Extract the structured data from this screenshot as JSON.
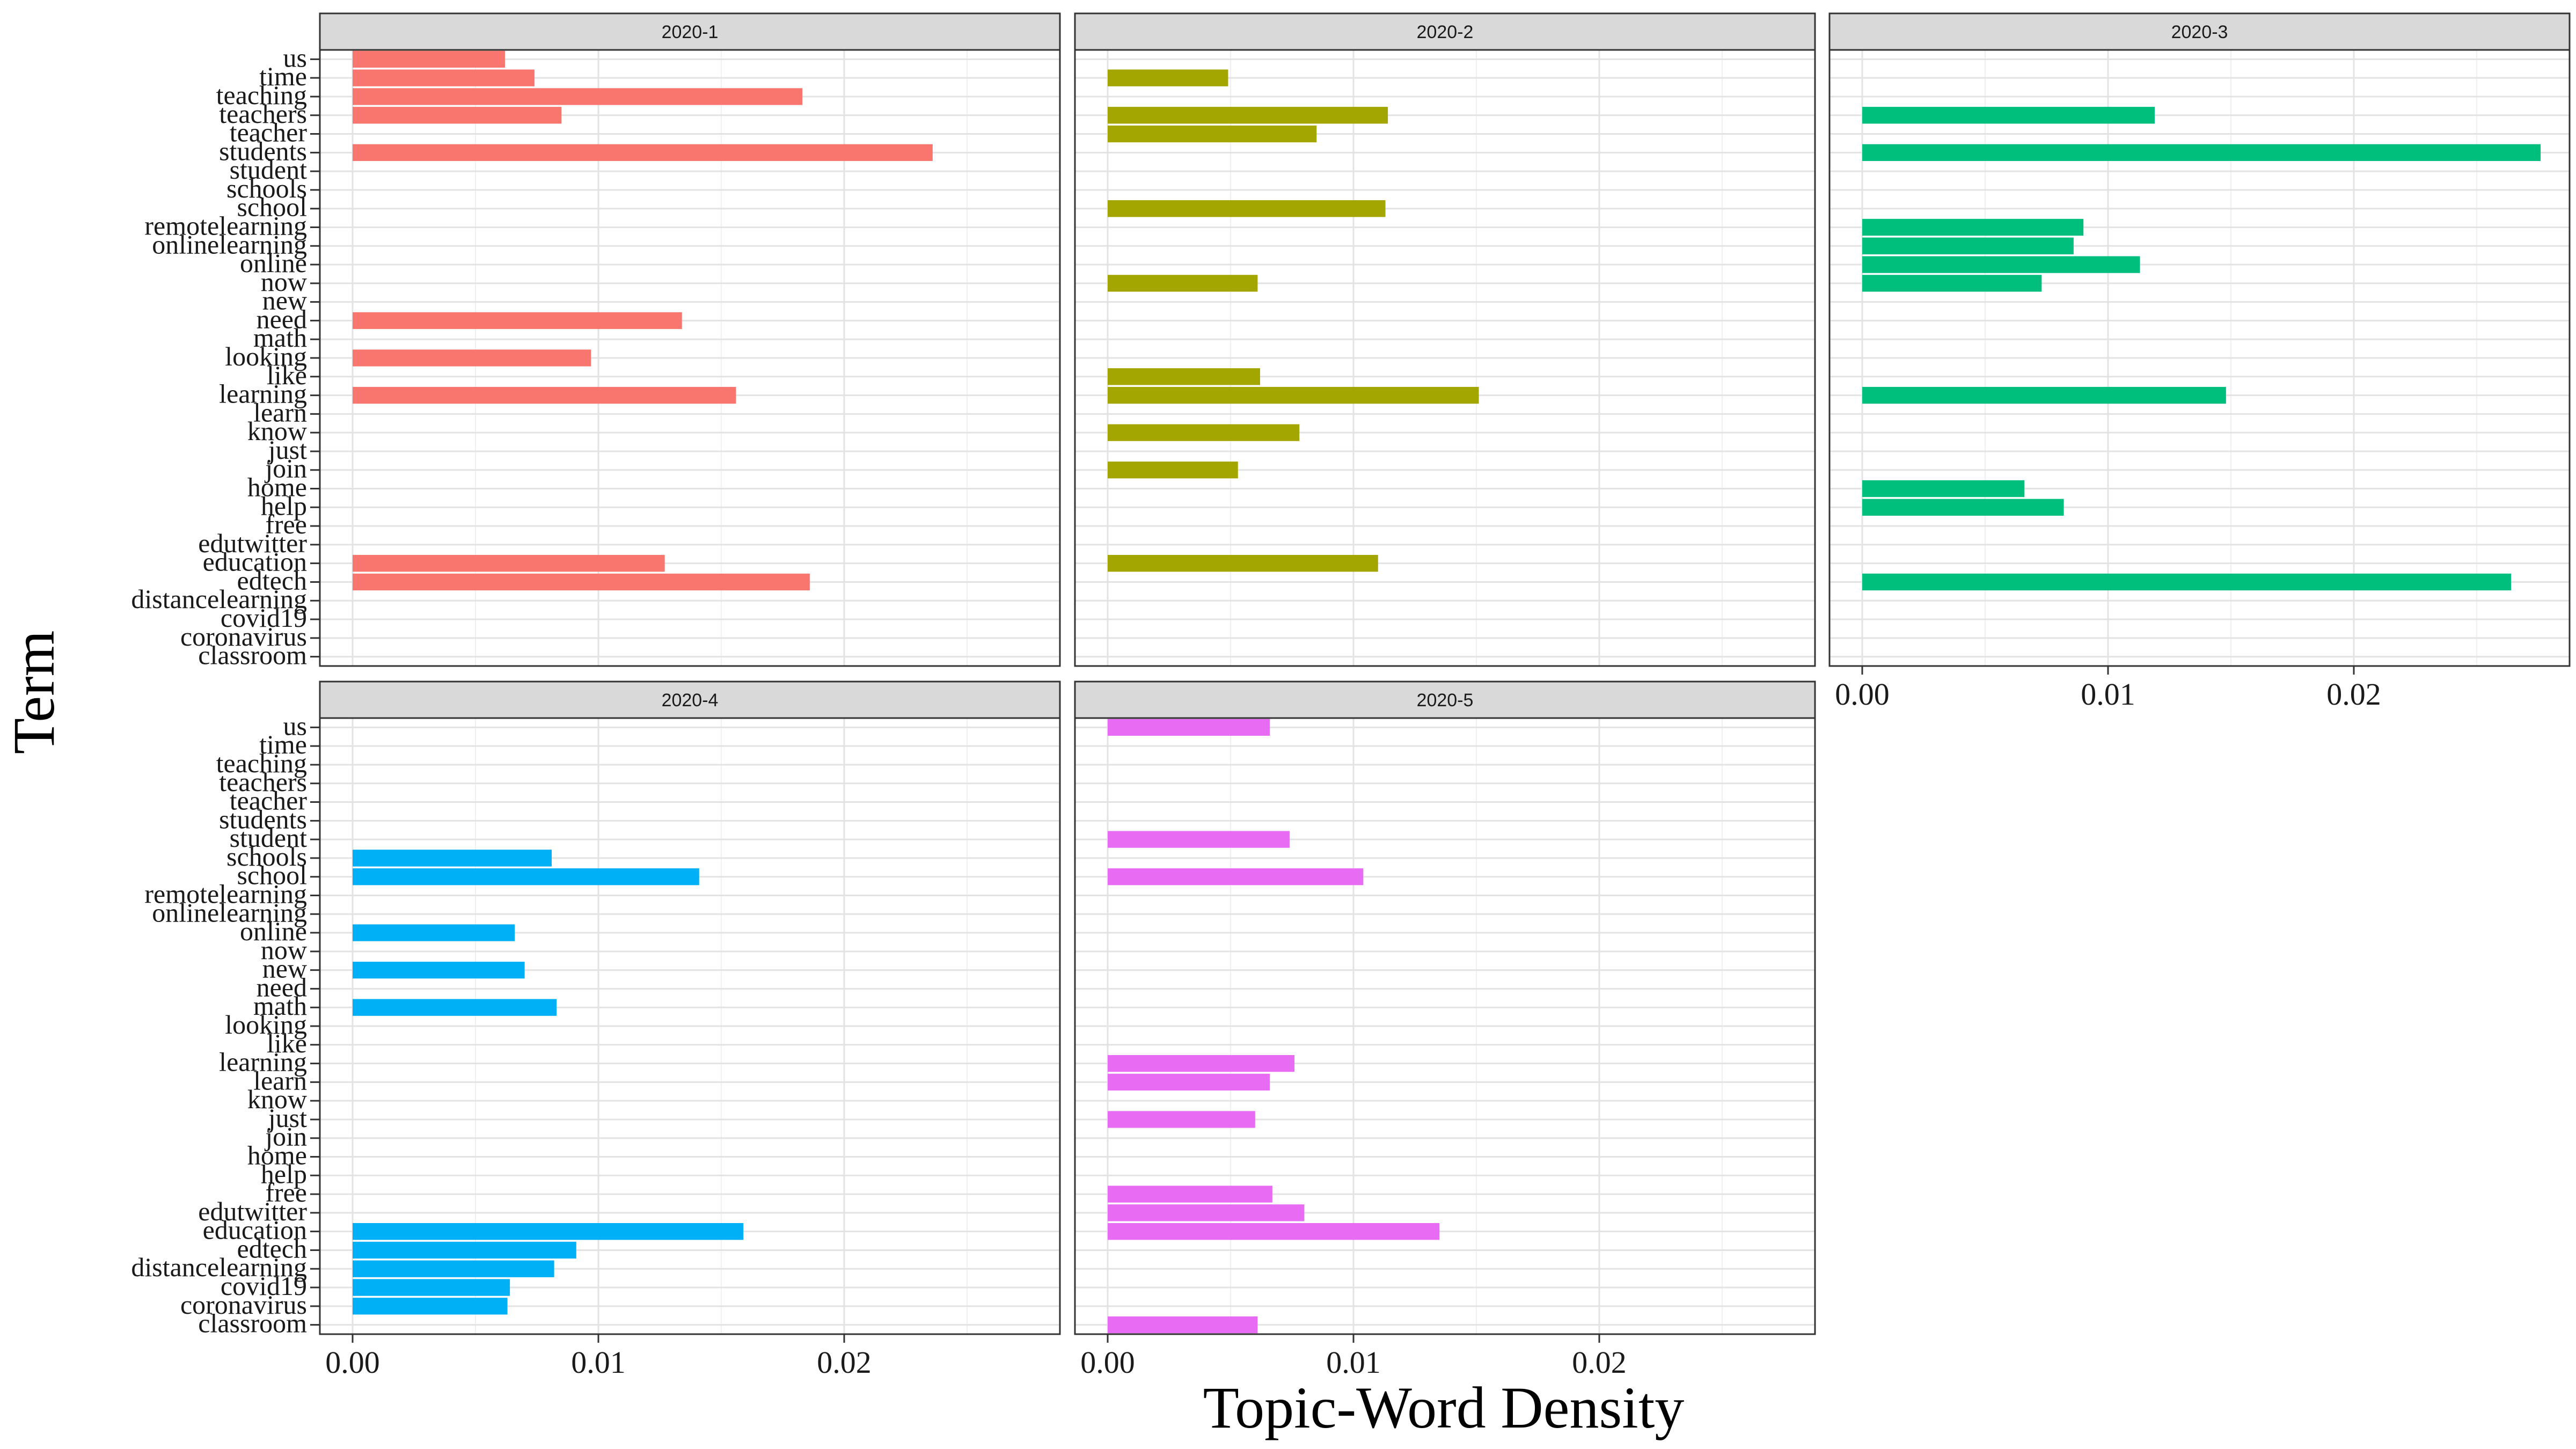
{
  "chart_data": {
    "type": "bar",
    "orientation": "horizontal",
    "facet_layout": {
      "rows": 2,
      "cols": 3
    },
    "xlabel": "Topic-Word Density",
    "ylabel": "Term",
    "xlim": [
      0,
      0.0288
    ],
    "x_ticks": [
      0,
      0.01,
      0.02
    ],
    "x_tick_labels": [
      "0.00",
      "0.01",
      "0.02"
    ],
    "grid": true,
    "legend": "none",
    "categories": [
      "us",
      "time",
      "teaching",
      "teachers",
      "teacher",
      "students",
      "student",
      "schools",
      "school",
      "remotelearning",
      "onlinelearning",
      "online",
      "now",
      "new",
      "need",
      "math",
      "looking",
      "like",
      "learning",
      "learn",
      "know",
      "just",
      "join",
      "home",
      "help",
      "free",
      "edutwitter",
      "education",
      "edtech",
      "distancelearning",
      "covid19",
      "coronavirus",
      "classroom"
    ],
    "panels": [
      {
        "label": "2020-1",
        "color": "#F8766D",
        "values": [
          0.0062,
          0.0074,
          0.0183,
          0.0085,
          null,
          0.0236,
          null,
          null,
          null,
          null,
          null,
          null,
          null,
          null,
          0.0134,
          null,
          0.0097,
          null,
          0.0156,
          null,
          null,
          null,
          null,
          null,
          null,
          null,
          null,
          0.0127,
          0.0186,
          null,
          null,
          null,
          null
        ]
      },
      {
        "label": "2020-2",
        "color": "#A3A500",
        "values": [
          null,
          0.0049,
          null,
          0.0114,
          0.0085,
          null,
          null,
          null,
          0.0113,
          null,
          null,
          null,
          0.0061,
          null,
          null,
          null,
          null,
          0.0062,
          0.0151,
          null,
          0.0078,
          null,
          0.0053,
          null,
          null,
          null,
          null,
          0.011,
          null,
          null,
          null,
          null,
          null
        ]
      },
      {
        "label": "2020-3",
        "color": "#00BF7D",
        "values": [
          null,
          null,
          null,
          0.0119,
          null,
          0.0276,
          null,
          null,
          null,
          0.009,
          0.0086,
          0.0113,
          0.0073,
          null,
          null,
          null,
          null,
          null,
          0.0148,
          null,
          null,
          null,
          null,
          0.0066,
          0.0082,
          null,
          null,
          null,
          0.0264,
          null,
          null,
          null,
          null
        ]
      },
      {
        "label": "2020-4",
        "color": "#00B0F6",
        "values": [
          null,
          null,
          null,
          null,
          null,
          null,
          null,
          0.0081,
          0.0141,
          null,
          null,
          0.0066,
          null,
          0.007,
          null,
          0.0083,
          null,
          null,
          null,
          null,
          null,
          null,
          null,
          null,
          null,
          null,
          null,
          0.0159,
          0.0091,
          0.0082,
          0.0064,
          0.0063,
          null
        ]
      },
      {
        "label": "2020-5",
        "color": "#E76BF3",
        "values": [
          0.0066,
          null,
          null,
          null,
          null,
          null,
          0.0074,
          null,
          0.0104,
          null,
          null,
          null,
          null,
          null,
          null,
          null,
          null,
          null,
          0.0076,
          0.0066,
          null,
          0.006,
          null,
          null,
          null,
          0.0067,
          0.008,
          0.0135,
          null,
          null,
          null,
          null,
          0.0061
        ]
      }
    ]
  }
}
